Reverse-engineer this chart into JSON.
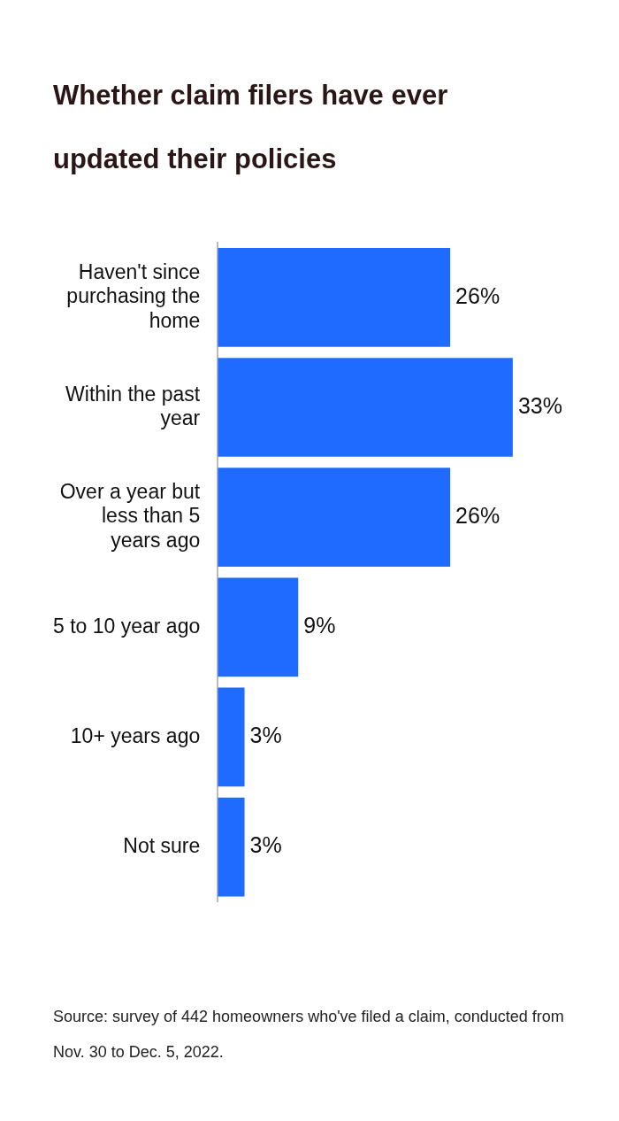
{
  "chart_data": {
    "type": "bar",
    "orientation": "horizontal",
    "title": "Whether claim filers have ever updated their policies",
    "categories": [
      "Haven't since purchasing the home",
      "Within the past year",
      "Over a year but less than 5 years ago",
      "5 to 10 year ago",
      "10+ years ago",
      "Not sure"
    ],
    "values": [
      26,
      33,
      26,
      9,
      3,
      3
    ],
    "value_labels": [
      "26%",
      "33%",
      "26%",
      "9%",
      "3%",
      "3%"
    ],
    "color": "#1f6bff",
    "grid": false,
    "legend": false,
    "annotations": [
      "Source: survey of 442 homeowners who've filed a claim, conducted from Nov. 30 to Dec. 5, 2022."
    ]
  }
}
